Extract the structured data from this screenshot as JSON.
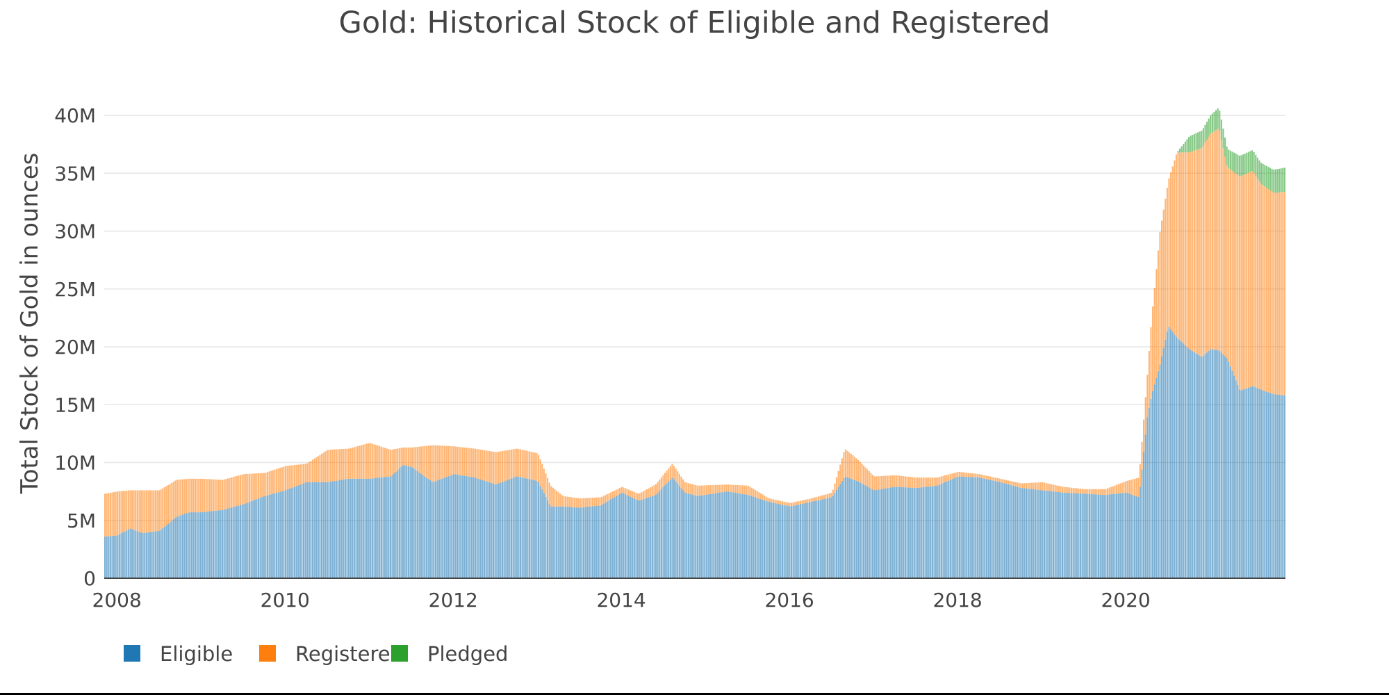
{
  "chart_data": {
    "type": "bar",
    "stacked": true,
    "title": "Gold: Historical Stock of Eligible and Registered",
    "xlabel": "",
    "ylabel": "Total Stock of Gold in ounces",
    "xlim": [
      2007.85,
      2021.9
    ],
    "ylim": [
      0,
      43500000
    ],
    "xticks": [
      {
        "value": 2008,
        "label": "2008"
      },
      {
        "value": 2010,
        "label": "2010"
      },
      {
        "value": 2012,
        "label": "2012"
      },
      {
        "value": 2014,
        "label": "2014"
      },
      {
        "value": 2016,
        "label": "2016"
      },
      {
        "value": 2018,
        "label": "2018"
      },
      {
        "value": 2020,
        "label": "2020"
      }
    ],
    "yticks": [
      {
        "value": 0,
        "label": "0"
      },
      {
        "value": 5000000,
        "label": "5M"
      },
      {
        "value": 10000000,
        "label": "10M"
      },
      {
        "value": 15000000,
        "label": "15M"
      },
      {
        "value": 20000000,
        "label": "20M"
      },
      {
        "value": 25000000,
        "label": "25M"
      },
      {
        "value": 30000000,
        "label": "30M"
      },
      {
        "value": 35000000,
        "label": "35M"
      },
      {
        "value": 40000000,
        "label": "40M"
      }
    ],
    "grid": true,
    "legend_position": "bottom-left",
    "series": [
      {
        "name": "Eligible",
        "color": "#1f77b4"
      },
      {
        "name": "Registered",
        "color": "#ff7f0e"
      },
      {
        "name": "Pledged",
        "color": "#2ca02c"
      }
    ],
    "units": "M oz",
    "x": [
      2007.85,
      2008.0,
      2008.15,
      2008.3,
      2008.5,
      2008.7,
      2008.85,
      2009.0,
      2009.25,
      2009.5,
      2009.75,
      2010.0,
      2010.25,
      2010.5,
      2010.75,
      2011.0,
      2011.25,
      2011.4,
      2011.5,
      2011.75,
      2012.0,
      2012.25,
      2012.5,
      2012.75,
      2013.0,
      2013.15,
      2013.3,
      2013.5,
      2013.75,
      2014.0,
      2014.2,
      2014.4,
      2014.6,
      2014.75,
      2014.9,
      2015.25,
      2015.5,
      2015.75,
      2016.0,
      2016.25,
      2016.5,
      2016.65,
      2016.8,
      2017.0,
      2017.25,
      2017.5,
      2017.75,
      2018.0,
      2018.25,
      2018.5,
      2018.75,
      2019.0,
      2019.25,
      2019.5,
      2019.75,
      2020.0,
      2020.15,
      2020.25,
      2020.3,
      2020.4,
      2020.5,
      2020.6,
      2020.75,
      2020.9,
      2021.0,
      2021.1,
      2021.2,
      2021.35,
      2021.5,
      2021.6,
      2021.75,
      2021.9
    ],
    "eligible": [
      3.6,
      3.7,
      4.3,
      3.9,
      4.1,
      5.3,
      5.7,
      5.7,
      5.9,
      6.4,
      7.1,
      7.6,
      8.3,
      8.3,
      8.6,
      8.6,
      8.8,
      9.8,
      9.6,
      8.3,
      9.0,
      8.7,
      8.1,
      8.8,
      8.4,
      6.2,
      6.2,
      6.1,
      6.3,
      7.4,
      6.7,
      7.2,
      8.7,
      7.4,
      7.1,
      7.5,
      7.2,
      6.6,
      6.2,
      6.6,
      7.0,
      8.8,
      8.4,
      7.6,
      7.9,
      7.8,
      8.0,
      8.8,
      8.7,
      8.3,
      7.8,
      7.6,
      7.4,
      7.3,
      7.2,
      7.4,
      7.0,
      14.0,
      15.8,
      18.5,
      21.8,
      20.8,
      19.8,
      19.1,
      19.8,
      19.7,
      19.0,
      16.2,
      16.6,
      16.3,
      15.9,
      15.8
    ],
    "registered": [
      3.7,
      3.8,
      3.3,
      3.7,
      3.5,
      3.2,
      2.9,
      2.9,
      2.6,
      2.6,
      2.0,
      2.1,
      1.6,
      2.8,
      2.6,
      3.1,
      2.3,
      1.5,
      1.7,
      3.2,
      2.4,
      2.5,
      2.8,
      2.4,
      2.4,
      1.8,
      0.9,
      0.8,
      0.7,
      0.5,
      0.6,
      0.9,
      1.2,
      0.9,
      0.9,
      0.6,
      0.8,
      0.3,
      0.3,
      0.3,
      0.4,
      2.4,
      1.9,
      1.2,
      1.0,
      0.9,
      0.7,
      0.4,
      0.3,
      0.3,
      0.4,
      0.7,
      0.5,
      0.4,
      0.5,
      1.0,
      1.7,
      3.7,
      6.7,
      11.5,
      12.6,
      16.0,
      17.0,
      18.1,
      18.6,
      19.2,
      16.5,
      18.5,
      18.6,
      17.8,
      17.4,
      17.6
    ],
    "pledged": [
      0,
      0,
      0,
      0,
      0,
      0,
      0,
      0,
      0,
      0,
      0,
      0,
      0,
      0,
      0,
      0,
      0,
      0,
      0,
      0,
      0,
      0,
      0,
      0,
      0,
      0,
      0,
      0,
      0,
      0,
      0,
      0,
      0,
      0,
      0,
      0,
      0,
      0,
      0,
      0,
      0,
      0,
      0,
      0,
      0,
      0,
      0,
      0,
      0,
      0,
      0,
      0,
      0,
      0,
      0,
      0,
      0,
      0,
      0,
      0,
      0,
      0,
      1.4,
      1.5,
      1.6,
      1.8,
      1.6,
      1.8,
      1.8,
      1.8,
      2.0,
      2.1
    ]
  }
}
